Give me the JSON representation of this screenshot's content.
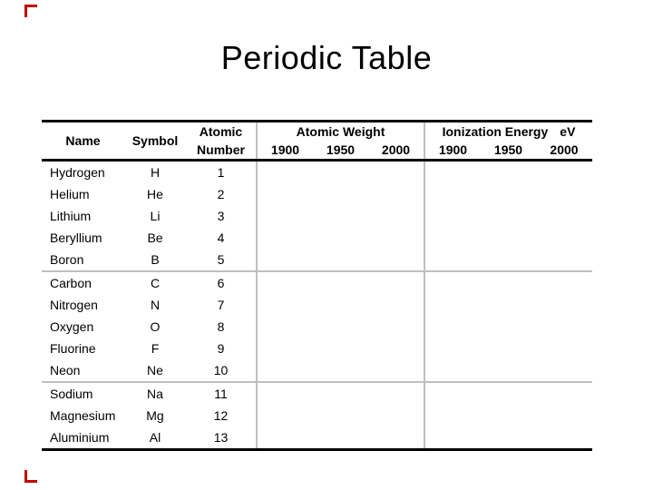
{
  "slide": {
    "title": "Periodic Table",
    "background_color": "#ffffff",
    "corner_mark_color": "#c00000",
    "corner_marks": [
      "top-left",
      "bottom-left"
    ]
  },
  "table": {
    "rule_color": "#000000",
    "divider_color": "#bfbfbf",
    "headers": {
      "name": "Name",
      "symbol": "Symbol",
      "atomic_number_line1": "Atomic",
      "atomic_number_line2": "Number",
      "atomic_weight": "Atomic Weight",
      "ionization_energy": "Ionization Energy",
      "ionization_unit": "eV",
      "year_columns": [
        "1900",
        "1950",
        "2000"
      ]
    },
    "group_breaks_after": [
      "Boron",
      "Neon"
    ],
    "rows": [
      {
        "name": "Hydrogen",
        "symbol": "H",
        "atomic_number": "1",
        "aw_1900": "",
        "aw_1950": "",
        "aw_2000": "",
        "ie_1900": "",
        "ie_1950": "",
        "ie_2000": ""
      },
      {
        "name": "Helium",
        "symbol": "He",
        "atomic_number": "2",
        "aw_1900": "",
        "aw_1950": "",
        "aw_2000": "",
        "ie_1900": "",
        "ie_1950": "",
        "ie_2000": ""
      },
      {
        "name": "Lithium",
        "symbol": "Li",
        "atomic_number": "3",
        "aw_1900": "",
        "aw_1950": "",
        "aw_2000": "",
        "ie_1900": "",
        "ie_1950": "",
        "ie_2000": ""
      },
      {
        "name": "Beryllium",
        "symbol": "Be",
        "atomic_number": "4",
        "aw_1900": "",
        "aw_1950": "",
        "aw_2000": "",
        "ie_1900": "",
        "ie_1950": "",
        "ie_2000": ""
      },
      {
        "name": "Boron",
        "symbol": "B",
        "atomic_number": "5",
        "aw_1900": "",
        "aw_1950": "",
        "aw_2000": "",
        "ie_1900": "",
        "ie_1950": "",
        "ie_2000": ""
      },
      {
        "name": "Carbon",
        "symbol": "C",
        "atomic_number": "6",
        "aw_1900": "",
        "aw_1950": "",
        "aw_2000": "",
        "ie_1900": "",
        "ie_1950": "",
        "ie_2000": ""
      },
      {
        "name": "Nitrogen",
        "symbol": "N",
        "atomic_number": "7",
        "aw_1900": "",
        "aw_1950": "",
        "aw_2000": "",
        "ie_1900": "",
        "ie_1950": "",
        "ie_2000": ""
      },
      {
        "name": "Oxygen",
        "symbol": "O",
        "atomic_number": "8",
        "aw_1900": "",
        "aw_1950": "",
        "aw_2000": "",
        "ie_1900": "",
        "ie_1950": "",
        "ie_2000": ""
      },
      {
        "name": "Fluorine",
        "symbol": "F",
        "atomic_number": "9",
        "aw_1900": "",
        "aw_1950": "",
        "aw_2000": "",
        "ie_1900": "",
        "ie_1950": "",
        "ie_2000": ""
      },
      {
        "name": "Neon",
        "symbol": "Ne",
        "atomic_number": "10",
        "aw_1900": "",
        "aw_1950": "",
        "aw_2000": "",
        "ie_1900": "",
        "ie_1950": "",
        "ie_2000": ""
      },
      {
        "name": "Sodium",
        "symbol": "Na",
        "atomic_number": "11",
        "aw_1900": "",
        "aw_1950": "",
        "aw_2000": "",
        "ie_1900": "",
        "ie_1950": "",
        "ie_2000": ""
      },
      {
        "name": "Magnesium",
        "symbol": "Mg",
        "atomic_number": "12",
        "aw_1900": "",
        "aw_1950": "",
        "aw_2000": "",
        "ie_1900": "",
        "ie_1950": "",
        "ie_2000": ""
      },
      {
        "name": "Aluminium",
        "symbol": "Al",
        "atomic_number": "13",
        "aw_1900": "",
        "aw_1950": "",
        "aw_2000": "",
        "ie_1900": "",
        "ie_1950": "",
        "ie_2000": ""
      }
    ]
  }
}
